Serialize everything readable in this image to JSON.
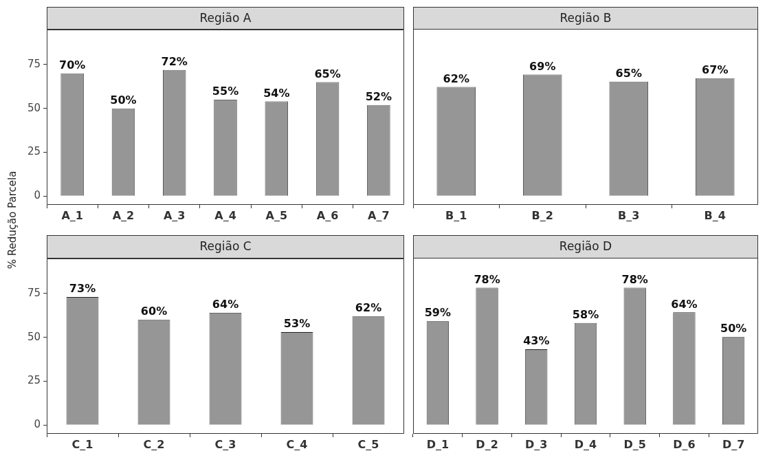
{
  "chart_data": [
    {
      "type": "bar",
      "title": "Região A",
      "ylabel": "% Redução Parcela",
      "categories": [
        "A_1",
        "A_2",
        "A_3",
        "A_4",
        "A_5",
        "A_6",
        "A_7"
      ],
      "values": [
        70,
        50,
        72,
        55,
        54,
        65,
        52
      ],
      "value_labels": [
        "70%",
        "50%",
        "72%",
        "55%",
        "54%",
        "65%",
        "52%"
      ],
      "color": "#969696",
      "ylim": [
        -5,
        95
      ],
      "yticks": [
        0,
        25,
        50,
        75
      ],
      "grid": false
    },
    {
      "type": "bar",
      "title": "Região B",
      "categories": [
        "B_1",
        "B_2",
        "B_3",
        "B_4"
      ],
      "values": [
        62,
        69,
        65,
        67
      ],
      "value_labels": [
        "62%",
        "69%",
        "65%",
        "67%"
      ],
      "color": "#969696",
      "ylim": [
        -5,
        95
      ],
      "yticks": [
        0,
        25,
        50,
        75
      ],
      "grid": false,
      "tick_labels": "x"
    },
    {
      "type": "bar",
      "title": "Região C",
      "categories": [
        "C_1",
        "C_2",
        "C_3",
        "C_4",
        "C_5"
      ],
      "values": [
        73,
        60,
        64,
        53,
        62
      ],
      "value_labels": [
        "73%",
        "60%",
        "64%",
        "53%",
        "62%"
      ],
      "color": "#969696",
      "ylim": [
        -5,
        95
      ],
      "yticks": [
        0,
        25,
        50,
        75
      ],
      "grid": false
    },
    {
      "type": "bar",
      "title": "Região D",
      "categories": [
        "D_1",
        "D_2",
        "D_3",
        "D_4",
        "D_5",
        "D_6",
        "D_7"
      ],
      "values": [
        59,
        78,
        43,
        58,
        78,
        64,
        50
      ],
      "value_labels": [
        "59%",
        "78%",
        "43%",
        "58%",
        "78%",
        "64%",
        "50%"
      ],
      "color": "#969696",
      "ylim": [
        -5,
        95
      ],
      "yticks": [
        0,
        25,
        50,
        75
      ],
      "grid": false,
      "tick_labels": "x"
    }
  ]
}
